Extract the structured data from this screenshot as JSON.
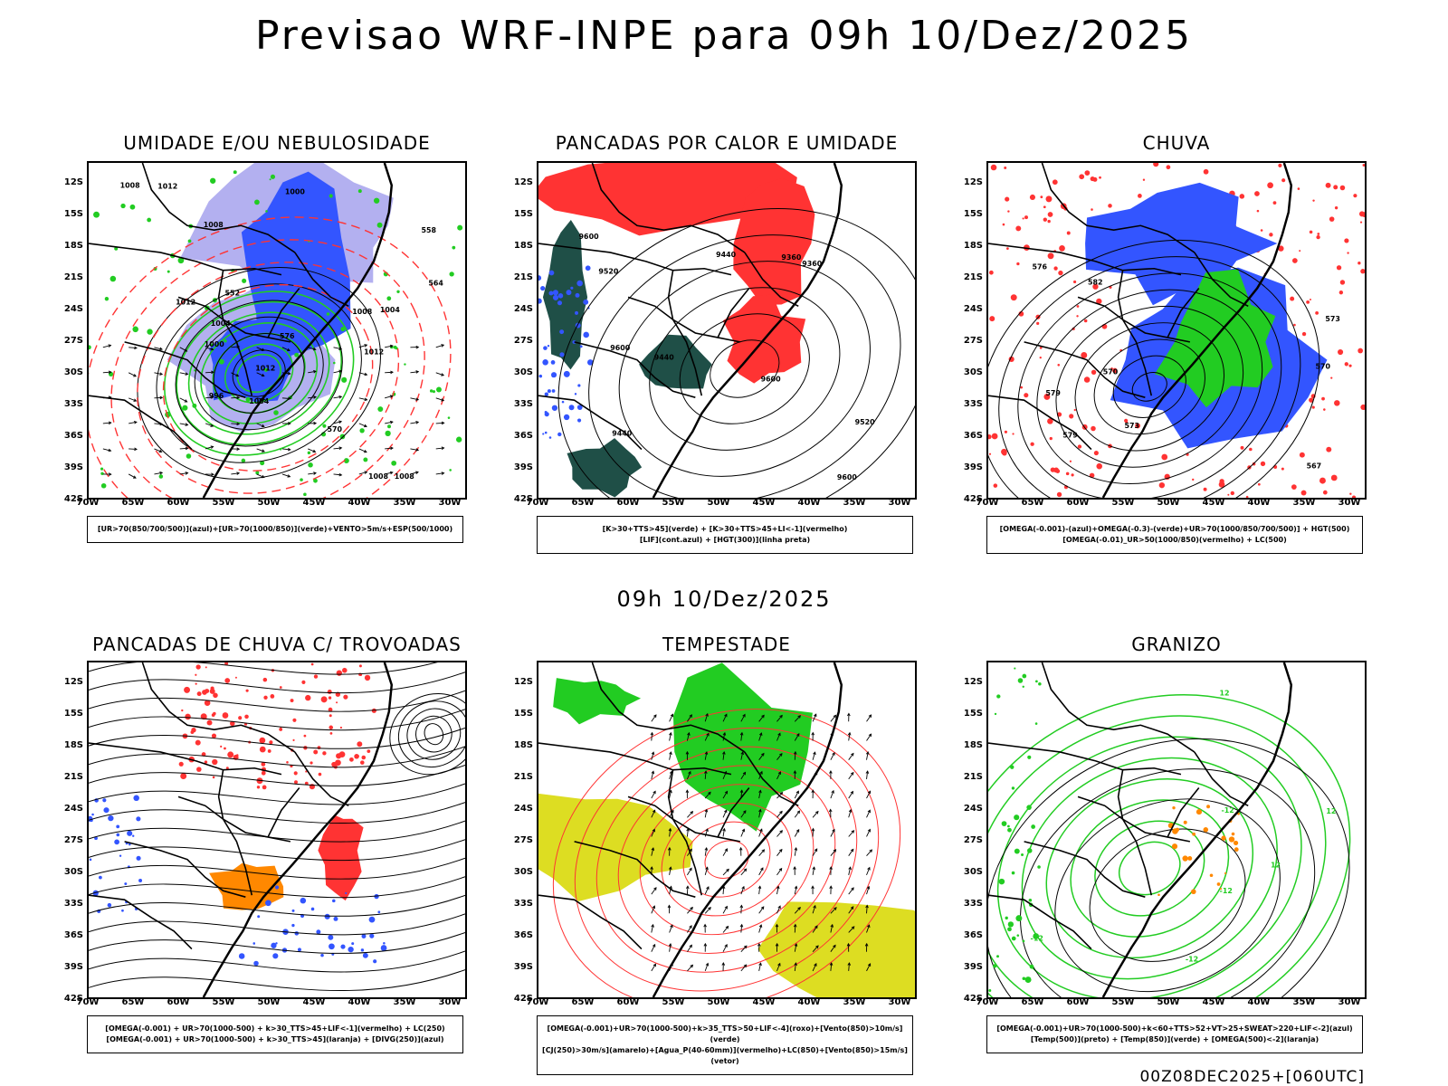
{
  "main_title": "Previsao WRF-INPE  para 09h 10/Dez/2025",
  "mid_title": "09h 10/Dez/2025",
  "footer": "00Z08DEC2025+[060UTC]",
  "lat_labels": [
    "12S",
    "15S",
    "18S",
    "21S",
    "24S",
    "27S",
    "30S",
    "33S",
    "36S",
    "39S",
    "42S"
  ],
  "lon_labels": [
    "70W",
    "65W",
    "60W",
    "55W",
    "50W",
    "45W",
    "40W",
    "35W",
    "30W"
  ],
  "colors": {
    "blue": "#3355ff",
    "green": "#22cc22",
    "red": "#ff3333",
    "orange": "#ff8800",
    "dark_green": "#1f4f47",
    "yellow": "#dddd22",
    "lavender": "#b3b0f0"
  },
  "panels": [
    {
      "title": "UMIDADE E/OU NEBULOSIDADE",
      "legend": [
        "[UR>70(850/700/500)](azul)+[UR>70(1000/850)](verde)+VENTO>5m/s+ESP(500/1000)"
      ],
      "contour_labels": [
        "1012",
        "1012",
        "1012",
        "1012",
        "1008",
        "1008",
        "1004",
        "1000",
        "996",
        "1008",
        "1004",
        "1000",
        "1008",
        "1008",
        "1004",
        "570",
        "576",
        "564",
        "558",
        "552"
      ]
    },
    {
      "title": "PANCADAS POR CALOR E UMIDADE",
      "legend": [
        "[K>30+TTS>45](verde) + [K>30+TTS>45+LI<-1](vermelho)",
        "[LIF](cont.azul) + [HGT(300)](linha preta)"
      ],
      "contour_labels": [
        "9600",
        "9600",
        "9600",
        "9600",
        "9520",
        "9520",
        "9440",
        "9440",
        "9360",
        "9440",
        "9360"
      ]
    },
    {
      "title": "CHUVA",
      "legend": [
        "[OMEGA(-0.001)-(azul)+OMEGA(-0.3)-(verde)+UR>70(1000/850/700/500)] + HGT(500)",
        "[OMEGA(-0.01)_UR>50(1000/850)(vermelho) + LC(500)"
      ],
      "contour_labels": [
        "582",
        "579",
        "576",
        "573",
        "570",
        "573",
        "567",
        "570",
        "579"
      ]
    },
    {
      "title": "PANCADAS DE CHUVA C/ TROVOADAS",
      "legend": [
        "[OMEGA(-0.001) + UR>70(1000-500) + k>30_TTS>45+LIF<-1](vermelho) + LC(250)",
        "[OMEGA(-0.001) + UR>70(1000-500) + k>30_TTS>45](laranja) + [DIVG(250)](azul)"
      ],
      "contour_labels": []
    },
    {
      "title": "TEMPESTADE",
      "legend": [
        "[OMEGA(-0.001)+UR>70(1000-500)+k>35_TTS>50+LIF<-4](roxo)+[Vento(850)>10m/s](verde)",
        "[CJ(250)>30m/s](amarelo)+[Agua_P(40-60mm)](vermelho)+LC(850)+[Vento(850)>15m/s](vetor)"
      ],
      "contour_labels": []
    },
    {
      "title": "GRANIZO",
      "legend": [
        "[OMEGA(-0.001)+UR>70(1000-500)+k<60+TTS>52+VT>25+SWEAT>220+LIF<-2](azul)",
        "[Temp(500)](preto) + [Temp(850)](verde) + [OMEGA(500)<-2](laranja)"
      ],
      "contour_labels": [
        "-12",
        "-12",
        "-12",
        "-12",
        "12",
        "12",
        "12"
      ]
    }
  ]
}
